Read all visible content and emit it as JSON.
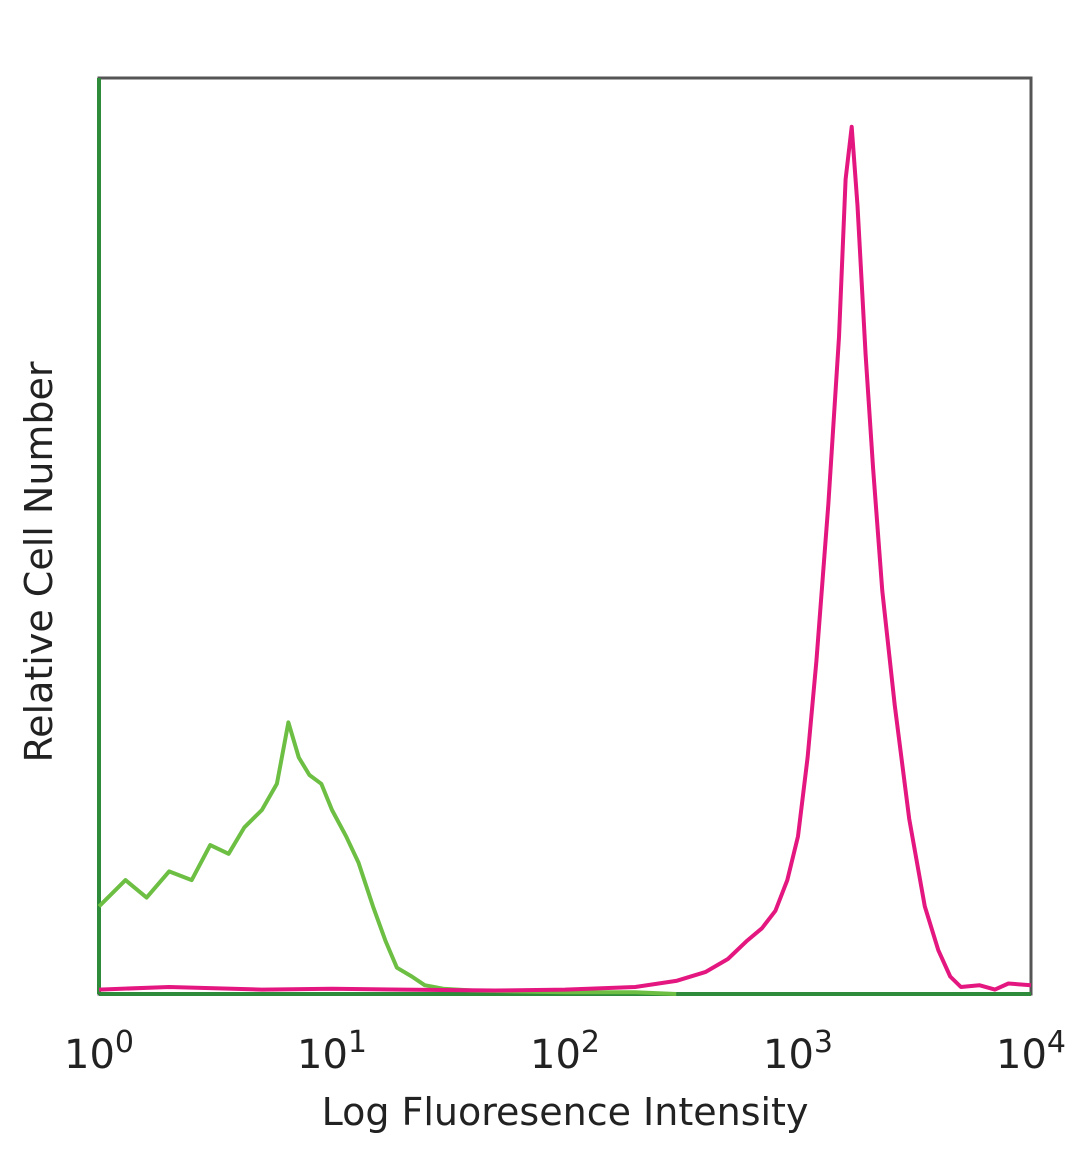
{
  "chart_data": {
    "type": "line",
    "xlabel": "Log Fluoresence Intensity",
    "ylabel": "Relative Cell Number",
    "xscale": "log",
    "xlim": [
      1,
      10000
    ],
    "ylim": [
      0,
      1
    ],
    "xticks": [
      {
        "value": 1,
        "base": "10",
        "exp": "0"
      },
      {
        "value": 10,
        "base": "10",
        "exp": "1"
      },
      {
        "value": 100,
        "base": "10",
        "exp": "2"
      },
      {
        "value": 1000,
        "base": "10",
        "exp": "3"
      },
      {
        "value": 10000,
        "base": "10",
        "exp": "4"
      }
    ],
    "grid": false,
    "legend": "none",
    "series": [
      {
        "color": "#6dbf44",
        "x": [
          1.0,
          1.3,
          1.6,
          2.0,
          2.5,
          3.0,
          3.6,
          4.2,
          5.0,
          5.8,
          6.5,
          7.2,
          8.0,
          9.0,
          10.0,
          11.5,
          13.0,
          15.0,
          17.0,
          19.0,
          22.0,
          25.0,
          30.0,
          40.0,
          60.0,
          100.0,
          200.0,
          300.0
        ],
        "values": [
          0.1,
          0.13,
          0.11,
          0.14,
          0.13,
          0.17,
          0.16,
          0.19,
          0.21,
          0.24,
          0.31,
          0.27,
          0.25,
          0.24,
          0.21,
          0.18,
          0.15,
          0.1,
          0.06,
          0.03,
          0.02,
          0.01,
          0.006,
          0.004,
          0.003,
          0.002,
          0.002,
          0.0
        ]
      },
      {
        "color": "#e3177f",
        "x": [
          1.0,
          2.0,
          5.0,
          10.0,
          20.0,
          50.0,
          100.0,
          200.0,
          300.0,
          400.0,
          500.0,
          600.0,
          700.0,
          800.0,
          900.0,
          1000.0,
          1100.0,
          1200.0,
          1350.0,
          1500.0,
          1600.0,
          1700.0,
          1800.0,
          1950.0,
          2100.0,
          2300.0,
          2600.0,
          3000.0,
          3500.0,
          4000.0,
          4500.0,
          5000.0,
          6000.0,
          7000.0,
          8000.0,
          10000.0
        ],
        "values": [
          0.005,
          0.008,
          0.005,
          0.006,
          0.005,
          0.004,
          0.005,
          0.008,
          0.015,
          0.025,
          0.04,
          0.06,
          0.075,
          0.095,
          0.13,
          0.18,
          0.27,
          0.38,
          0.56,
          0.75,
          0.93,
          0.99,
          0.9,
          0.73,
          0.6,
          0.46,
          0.33,
          0.2,
          0.1,
          0.05,
          0.02,
          0.008,
          0.01,
          0.005,
          0.012,
          0.01
        ]
      }
    ]
  }
}
